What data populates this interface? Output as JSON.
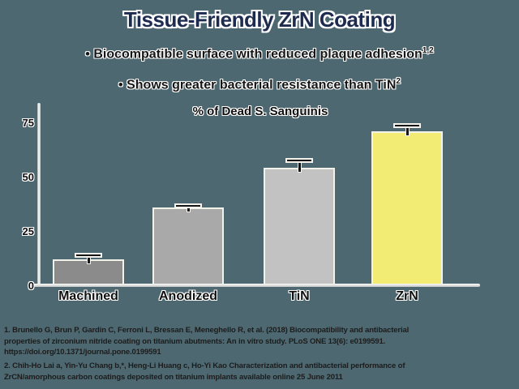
{
  "slide": {
    "title": "Tissue-Friendly ZrN Coating",
    "bullet_char": "•",
    "bullets": [
      {
        "text": "Biocompatible surface with reduced plaque adhesion",
        "superscript": "1,2"
      },
      {
        "text": "Shows greater bacterial resistance than TiN",
        "superscript": "2"
      }
    ]
  },
  "chart_data": {
    "type": "bar",
    "title": "% of Dead S. Sanguinis",
    "categories": [
      "Machined",
      "Anodized",
      "TiN",
      "ZrN"
    ],
    "values": [
      12,
      36,
      54,
      71
    ],
    "errors_plus": [
      2,
      1,
      4,
      3
    ],
    "bar_colors": [
      "#8b8b8b",
      "#a9a9a9",
      "#c2c2c2",
      "#f2ec75"
    ],
    "xlabel": "",
    "ylabel": "",
    "yticks": [
      0,
      25,
      50,
      75
    ],
    "ylim": [
      0,
      82
    ],
    "grid": false,
    "legend": "none"
  },
  "footnotes": {
    "lines": [
      "1. Brunello G, Brun P, Gardin C, Ferroni L, Bressan E, Meneghello R, et al. (2018) Biocompatibility and antibacterial",
      "properties of zirconium nitride coating on titanium abutments: An in vitro study. PLoS ONE 13(6): e0199591.",
      "https://doi.org/10.1371/journal.pone.0199591",
      "2. Chih-Ho Lai a, Yin-Yu Chang b,*, Heng-Li Huang c, Ho-Yi Kao Characterization and antibacterial performance of",
      "ZrCN/amorphous carbon coatings deposited on titanium implants available online 25 June 2011"
    ]
  },
  "colors": {
    "background": "#4d6870",
    "title_text": "#1d2b4e",
    "body_text": "#161616",
    "axis_light": "#f2f1ea",
    "bar_machined": "#8b8b8b",
    "bar_anodized": "#a9a9a9",
    "bar_tin": "#c2c2c2",
    "bar_zrn": "#f2ec75",
    "text_outline": "#ffffff"
  }
}
